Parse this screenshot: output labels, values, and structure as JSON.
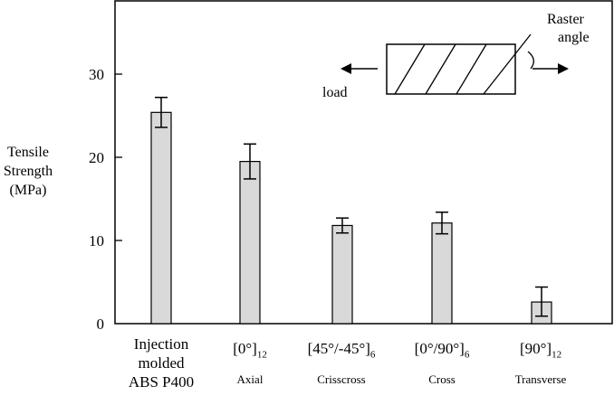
{
  "chart_data": {
    "type": "bar",
    "ylabel_lines": [
      "Tensile",
      "Strength",
      "(MPa)"
    ],
    "ylim": [
      0,
      38
    ],
    "yticks": [
      "0",
      "10",
      "20",
      "30"
    ],
    "grid": false,
    "categories": [
      {
        "main": "Injection molded ABS P400",
        "main_lines": [
          "Injection",
          "molded",
          "ABS P400"
        ],
        "sub": ""
      },
      {
        "main": "[0°]",
        "subscript": "12",
        "sub": "Axial"
      },
      {
        "main": "[45°/-45°]",
        "subscript": "6",
        "sub": "Crisscross"
      },
      {
        "main": "[0°/90°]",
        "subscript": "6",
        "sub": "Cross"
      },
      {
        "main": "[90°]",
        "subscript": "12",
        "sub": "Transverse"
      }
    ],
    "values": [
      25.4,
      19.5,
      11.8,
      12.1,
      2.6
    ],
    "error_high": [
      27.2,
      21.6,
      12.7,
      13.4,
      4.4
    ],
    "error_low": [
      23.6,
      17.4,
      10.9,
      10.8,
      0.9
    ],
    "bar_color": "#d9d9d9",
    "inset": {
      "raster_label_lines": [
        "Raster",
        "angle"
      ],
      "load_label": "load"
    }
  }
}
